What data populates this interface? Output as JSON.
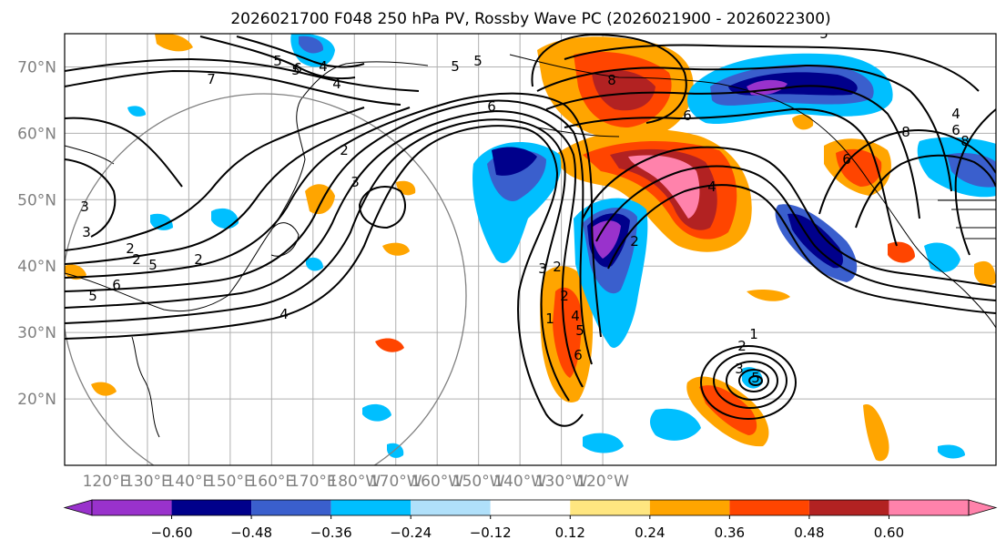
{
  "title": "2026021700 F048 250 hPa PV, Rossby Wave PC (2026021900 - 2026022300)",
  "lat_labels": [
    "70°N",
    "60°N",
    "50°N",
    "40°N",
    "30°N",
    "20°N"
  ],
  "lon_labels": [
    "120°E",
    "130°E",
    "140°E",
    "150°E",
    "160°E",
    "170°E",
    "180°W",
    "170°W",
    "160°W",
    "150°W",
    "140°W",
    "130°W",
    "120°W"
  ],
  "colorbar": {
    "tick_labels": [
      "−0.60",
      "−0.48",
      "−0.36",
      "−0.24",
      "−0.12",
      "0.12",
      "0.24",
      "0.36",
      "0.48",
      "0.60"
    ],
    "colors": [
      "#9932cc",
      "#00008b",
      "#3a5fcd",
      "#00bfff",
      "#b0e0fa",
      "#ffffff",
      "#ffe680",
      "#ffa500",
      "#ff4500",
      "#b22222",
      "#ff82ab"
    ]
  },
  "contour_labels": [
    "5",
    "4",
    "6",
    "7",
    "5",
    "3",
    "2",
    "2",
    "2",
    "5",
    "6",
    "5",
    "3",
    "3",
    "2",
    "4",
    "5",
    "4",
    "5",
    "6",
    "8",
    "6",
    "4",
    "3",
    "2",
    "1",
    "2",
    "4",
    "5",
    "6",
    "2",
    "1",
    "2",
    "3",
    "5",
    "6",
    "8",
    "6",
    "8",
    "4",
    "5"
  ],
  "map": {
    "projection": "cylindrical",
    "lon_range": "110°E to 115°W",
    "lat_range": "10°N to 75°N",
    "feature": "gray great-circle ring centered near 140°E 35°N"
  }
}
